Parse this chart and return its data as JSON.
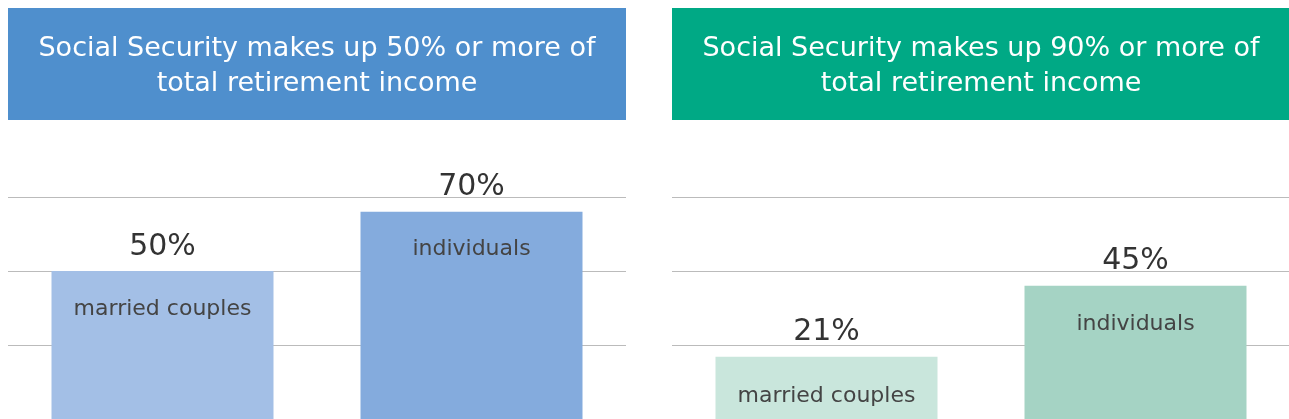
{
  "chart_data": [
    {
      "type": "bar",
      "title": "Social Security makes up 50% or more of total retirement income",
      "categories": [
        "married couples",
        "individuals"
      ],
      "values": [
        50,
        70
      ],
      "colors": [
        "#a3bfe6",
        "#84abdd"
      ],
      "value_labels": [
        "50%",
        "70%"
      ],
      "ylim": [
        0,
        75
      ],
      "yticks": [
        {
          "value": 25,
          "label": null
        },
        {
          "value": 50,
          "label": null
        },
        {
          "value": 75,
          "label": null
        }
      ],
      "grid": "y",
      "tick_labels": "x"
    },
    {
      "type": "bar",
      "title": "Social Security makes up 90% or more of total retirement income",
      "categories": [
        "married couples",
        "individuals"
      ],
      "values": [
        21,
        45
      ],
      "colors": [
        "#c9e6dc",
        "#a5d3c4"
      ],
      "value_labels": [
        "21%",
        "45%"
      ],
      "ylim": [
        0,
        75
      ],
      "yticks": [
        {
          "value": 25,
          "label": null
        },
        {
          "value": 50,
          "label": null
        },
        {
          "value": 75,
          "label": null
        }
      ],
      "grid": "y",
      "tick_labels": "x"
    }
  ]
}
